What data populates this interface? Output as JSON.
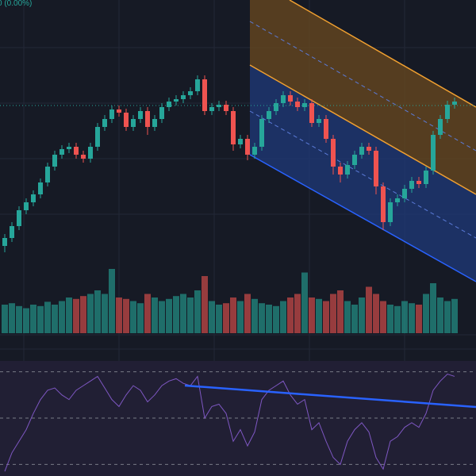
{
  "chart_data": [
    {
      "type": "candlestick",
      "label": "0 (0.00%)",
      "label_color": "#26a69a",
      "up_color": "#26a69a",
      "down_color": "#ef5350",
      "ylim": [
        0,
        330
      ],
      "open": [
        20,
        30,
        45,
        65,
        75,
        85,
        100,
        120,
        135,
        142,
        145,
        135,
        130,
        145,
        170,
        180,
        192,
        188,
        170,
        180,
        190,
        170,
        180,
        195,
        202,
        205,
        210,
        215,
        230,
        190,
        195,
        198,
        190,
        148,
        155,
        135,
        145,
        180,
        190,
        200,
        210,
        202,
        195,
        200,
        175,
        180,
        155,
        120,
        110,
        122,
        135,
        145,
        140,
        95,
        50,
        75,
        80,
        92,
        102,
        98,
        115,
        160,
        180,
        198
      ],
      "high": [
        35,
        50,
        70,
        80,
        90,
        105,
        125,
        140,
        147,
        150,
        150,
        140,
        150,
        175,
        185,
        197,
        197,
        193,
        185,
        195,
        195,
        185,
        200,
        207,
        210,
        215,
        220,
        235,
        235,
        200,
        203,
        203,
        195,
        160,
        160,
        150,
        185,
        195,
        205,
        215,
        215,
        207,
        205,
        205,
        185,
        185,
        160,
        125,
        127,
        140,
        150,
        150,
        145,
        100,
        80,
        85,
        97,
        107,
        107,
        120,
        165,
        185,
        203,
        207
      ],
      "low": [
        12,
        25,
        40,
        60,
        70,
        80,
        95,
        115,
        130,
        137,
        130,
        125,
        125,
        140,
        165,
        175,
        183,
        165,
        165,
        175,
        160,
        165,
        175,
        190,
        197,
        200,
        205,
        210,
        185,
        185,
        190,
        185,
        140,
        143,
        128,
        130,
        140,
        175,
        185,
        195,
        197,
        190,
        190,
        170,
        170,
        150,
        110,
        100,
        105,
        117,
        130,
        135,
        85,
        40,
        45,
        70,
        75,
        87,
        93,
        93,
        110,
        155,
        175,
        193
      ],
      "close": [
        30,
        45,
        65,
        75,
        85,
        100,
        120,
        135,
        142,
        145,
        135,
        130,
        145,
        170,
        180,
        192,
        188,
        170,
        180,
        190,
        170,
        180,
        195,
        202,
        205,
        210,
        215,
        230,
        190,
        195,
        198,
        190,
        148,
        155,
        135,
        145,
        180,
        190,
        200,
        210,
        202,
        195,
        200,
        175,
        180,
        155,
        120,
        110,
        122,
        135,
        145,
        140,
        95,
        50,
        75,
        80,
        92,
        102,
        98,
        115,
        160,
        180,
        198,
        202
      ]
    },
    {
      "type": "bar",
      "ylim": [
        0,
        100
      ],
      "values": [
        40,
        42,
        38,
        35,
        40,
        38,
        44,
        40,
        45,
        50,
        48,
        52,
        55,
        60,
        55,
        90,
        50,
        48,
        45,
        42,
        55,
        50,
        45,
        48,
        52,
        55,
        50,
        60,
        80,
        45,
        40,
        42,
        50,
        45,
        55,
        48,
        42,
        40,
        38,
        45,
        50,
        55,
        85,
        50,
        48,
        45,
        55,
        60,
        45,
        40,
        50,
        65,
        55,
        45,
        40,
        38,
        45,
        42,
        40,
        55,
        70,
        50,
        45,
        48
      ]
    },
    {
      "type": "line",
      "color": "#7e57c2",
      "ylim": [
        25,
        75
      ],
      "yticks": [
        30,
        50,
        70
      ],
      "values": [
        27,
        35,
        40,
        45,
        52,
        58,
        62,
        63,
        60,
        58,
        62,
        64,
        66,
        68,
        63,
        58,
        55,
        60,
        64,
        62,
        57,
        60,
        64,
        66,
        67,
        65,
        64,
        68,
        50,
        55,
        56,
        52,
        40,
        45,
        38,
        44,
        58,
        62,
        64,
        66,
        60,
        56,
        58,
        45,
        48,
        40,
        33,
        30,
        40,
        45,
        48,
        44,
        33,
        28,
        40,
        42,
        46,
        48,
        46,
        52,
        62,
        66,
        69,
        68
      ]
    }
  ]
}
